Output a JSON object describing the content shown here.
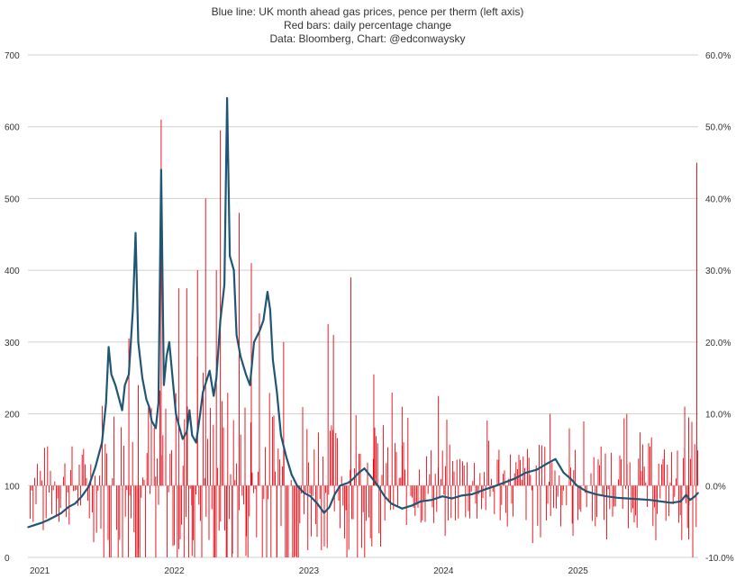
{
  "chart_data": {
    "type": "line",
    "title_lines": [
      "Blue line: UK month ahead gas prices, pence per therm (left axis)",
      "Red bars: daily percentage change",
      "Data: Bloomberg, Chart: @edconwaysky"
    ],
    "x_range": [
      2021.0,
      2025.98
    ],
    "x_ticks": [
      {
        "value": 2021,
        "label": "2021"
      },
      {
        "value": 2022,
        "label": "2022"
      },
      {
        "value": 2023,
        "label": "2023"
      },
      {
        "value": 2024,
        "label": "2024"
      },
      {
        "value": 2025,
        "label": "2025"
      }
    ],
    "y_left": {
      "range": [
        0,
        700
      ],
      "ticks": [
        {
          "value": 0,
          "label": "0"
        },
        {
          "value": 100,
          "label": "100"
        },
        {
          "value": 200,
          "label": "200"
        },
        {
          "value": 300,
          "label": "300"
        },
        {
          "value": 400,
          "label": "400"
        },
        {
          "value": 500,
          "label": "500"
        },
        {
          "value": 600,
          "label": "600"
        },
        {
          "value": 700,
          "label": "700"
        }
      ]
    },
    "y_right": {
      "range": [
        -10,
        60
      ],
      "ticks": [
        {
          "value": -10,
          "label": "-10.0%"
        },
        {
          "value": 0,
          "label": "0.0%"
        },
        {
          "value": 10,
          "label": "10.0%"
        },
        {
          "value": 20,
          "label": "20.0%"
        },
        {
          "value": 30,
          "label": "30.0%"
        },
        {
          "value": 40,
          "label": "40.0%"
        },
        {
          "value": 50,
          "label": "50.0%"
        },
        {
          "value": 60,
          "label": "60.0%"
        }
      ]
    },
    "grid": true,
    "series": [
      {
        "name": "UK month ahead gas price (p/therm)",
        "axis": "left",
        "color": "#1f5673",
        "points": [
          [
            2021.0,
            42
          ],
          [
            2021.05,
            45
          ],
          [
            2021.1,
            48
          ],
          [
            2021.15,
            52
          ],
          [
            2021.2,
            57
          ],
          [
            2021.25,
            62
          ],
          [
            2021.3,
            70
          ],
          [
            2021.35,
            75
          ],
          [
            2021.4,
            85
          ],
          [
            2021.45,
            98
          ],
          [
            2021.5,
            125
          ],
          [
            2021.55,
            160
          ],
          [
            2021.58,
            215
          ],
          [
            2021.6,
            293
          ],
          [
            2021.62,
            255
          ],
          [
            2021.65,
            240
          ],
          [
            2021.7,
            205
          ],
          [
            2021.72,
            240
          ],
          [
            2021.75,
            255
          ],
          [
            2021.78,
            345
          ],
          [
            2021.8,
            452
          ],
          [
            2021.82,
            300
          ],
          [
            2021.85,
            250
          ],
          [
            2021.88,
            220
          ],
          [
            2021.9,
            210
          ],
          [
            2021.92,
            190
          ],
          [
            2021.95,
            180
          ],
          [
            2021.97,
            215
          ],
          [
            2021.99,
            540
          ],
          [
            2022.01,
            240
          ],
          [
            2022.03,
            280
          ],
          [
            2022.05,
            300
          ],
          [
            2022.08,
            240
          ],
          [
            2022.1,
            200
          ],
          [
            2022.12,
            185
          ],
          [
            2022.15,
            165
          ],
          [
            2022.18,
            175
          ],
          [
            2022.2,
            205
          ],
          [
            2022.22,
            170
          ],
          [
            2022.25,
            160
          ],
          [
            2022.28,
            200
          ],
          [
            2022.3,
            230
          ],
          [
            2022.35,
            260
          ],
          [
            2022.38,
            225
          ],
          [
            2022.4,
            250
          ],
          [
            2022.43,
            330
          ],
          [
            2022.46,
            380
          ],
          [
            2022.48,
            640
          ],
          [
            2022.5,
            420
          ],
          [
            2022.53,
            400
          ],
          [
            2022.55,
            310
          ],
          [
            2022.58,
            280
          ],
          [
            2022.62,
            255
          ],
          [
            2022.65,
            240
          ],
          [
            2022.68,
            300
          ],
          [
            2022.72,
            315
          ],
          [
            2022.75,
            330
          ],
          [
            2022.78,
            370
          ],
          [
            2022.8,
            345
          ],
          [
            2022.82,
            275
          ],
          [
            2022.85,
            230
          ],
          [
            2022.88,
            170
          ],
          [
            2022.92,
            140
          ],
          [
            2022.96,
            115
          ],
          [
            2023.0,
            100
          ],
          [
            2023.05,
            90
          ],
          [
            2023.1,
            85
          ],
          [
            2023.15,
            75
          ],
          [
            2023.2,
            62
          ],
          [
            2023.24,
            70
          ],
          [
            2023.28,
            88
          ],
          [
            2023.32,
            100
          ],
          [
            2023.38,
            104
          ],
          [
            2023.42,
            110
          ],
          [
            2023.46,
            118
          ],
          [
            2023.5,
            124
          ],
          [
            2023.55,
            112
          ],
          [
            2023.6,
            100
          ],
          [
            2023.65,
            85
          ],
          [
            2023.7,
            75
          ],
          [
            2023.78,
            68
          ],
          [
            2023.85,
            72
          ],
          [
            2023.92,
            78
          ],
          [
            2024.0,
            80
          ],
          [
            2024.08,
            85
          ],
          [
            2024.15,
            82
          ],
          [
            2024.22,
            86
          ],
          [
            2024.3,
            88
          ],
          [
            2024.4,
            95
          ],
          [
            2024.48,
            100
          ],
          [
            2024.55,
            105
          ],
          [
            2024.62,
            110
          ],
          [
            2024.7,
            118
          ],
          [
            2024.78,
            122
          ],
          [
            2024.85,
            130
          ],
          [
            2024.92,
            137
          ],
          [
            2024.98,
            118
          ],
          [
            2025.03,
            110
          ],
          [
            2025.08,
            100
          ],
          [
            2025.15,
            92
          ],
          [
            2025.22,
            88
          ],
          [
            2025.3,
            85
          ],
          [
            2025.38,
            83
          ],
          [
            2025.46,
            82
          ],
          [
            2025.54,
            81
          ],
          [
            2025.62,
            80
          ],
          [
            2025.7,
            78
          ],
          [
            2025.78,
            76
          ],
          [
            2025.85,
            78
          ],
          [
            2025.89,
            87
          ],
          [
            2025.92,
            80
          ],
          [
            2025.95,
            84
          ],
          [
            2025.98,
            90
          ]
        ]
      },
      {
        "name": "Daily percentage change (%)",
        "axis": "right",
        "type": "bar",
        "color": "#e8000b",
        "spikes": [
          [
            2021.75,
            20.5
          ],
          [
            2021.82,
            14
          ],
          [
            2021.99,
            51
          ],
          [
            2022.12,
            27.5
          ],
          [
            2022.18,
            27.5
          ],
          [
            2022.26,
            30
          ],
          [
            2022.32,
            40
          ],
          [
            2022.4,
            30
          ],
          [
            2022.43,
            49.5
          ],
          [
            2022.57,
            38
          ],
          [
            2022.66,
            31
          ],
          [
            2022.72,
            24
          ],
          [
            2022.9,
            20
          ],
          [
            2023.23,
            22.5
          ],
          [
            2023.27,
            21
          ],
          [
            2023.4,
            29
          ],
          [
            2023.57,
            15.5
          ],
          [
            2023.78,
            11
          ],
          [
            2024.05,
            12.5
          ],
          [
            2024.5,
            5
          ],
          [
            2024.88,
            10
          ],
          [
            2025.45,
            10
          ],
          [
            2025.88,
            11
          ],
          [
            2025.91,
            9.5
          ],
          [
            2025.97,
            45
          ],
          [
            2021.82,
            -10
          ],
          [
            2021.95,
            -10
          ],
          [
            2022.16,
            -10
          ],
          [
            2022.22,
            -9.8
          ],
          [
            2022.38,
            -10
          ],
          [
            2022.48,
            -10
          ],
          [
            2022.52,
            -9.5
          ],
          [
            2022.62,
            -9.8
          ],
          [
            2022.85,
            -10
          ],
          [
            2023.08,
            -9
          ],
          [
            2023.37,
            -10
          ],
          [
            2023.62,
            -8.5
          ],
          [
            2024.1,
            -7
          ],
          [
            2024.75,
            -8
          ],
          [
            2025.05,
            -7
          ],
          [
            2025.3,
            -7.5
          ],
          [
            2025.91,
            -7.5
          ],
          [
            2025.94,
            -10
          ]
        ]
      }
    ]
  }
}
